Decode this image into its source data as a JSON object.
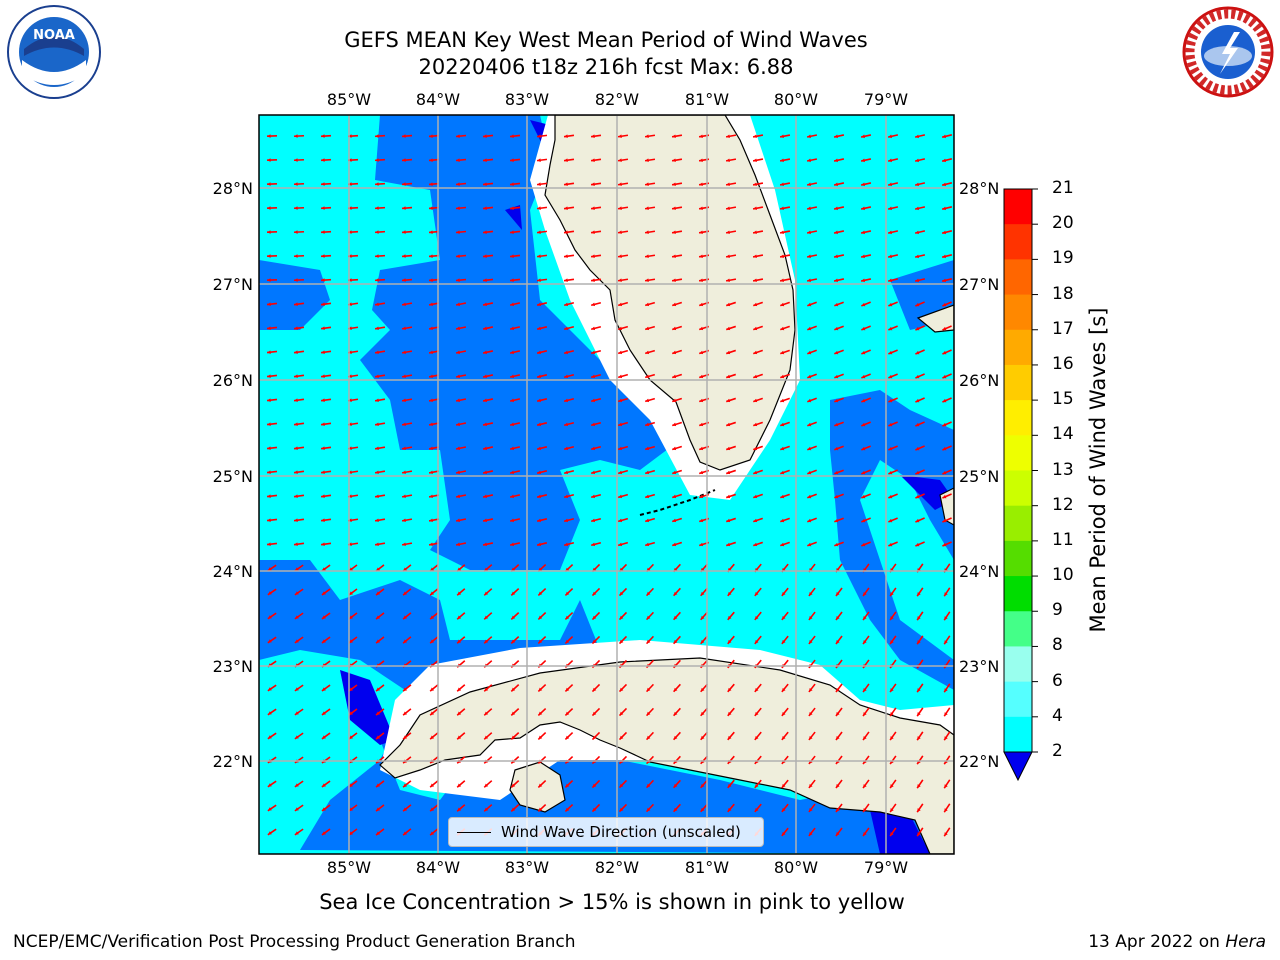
{
  "title_line1": "GEFS MEAN Key West Mean Period of Wind Waves",
  "title_line2": "20220406 t18z 216h fcst   Max: 6.88",
  "lon_labels": [
    "85°W",
    "84°W",
    "83°W",
    "82°W",
    "81°W",
    "80°W",
    "79°W"
  ],
  "lat_labels": [
    "28°N",
    "27°N",
    "26°N",
    "25°N",
    "24°N",
    "23°N",
    "22°N"
  ],
  "legend_label": "Wind Wave Direction (unscaled)",
  "colorbar": {
    "label": "Mean Period of Wind Waves [s]",
    "ticks": [
      "21",
      "20",
      "19",
      "18",
      "17",
      "16",
      "15",
      "14",
      "13",
      "12",
      "11",
      "10",
      "9",
      "8",
      "6",
      "4",
      "2"
    ],
    "colors": [
      "#ff0000",
      "#ff3300",
      "#ff6600",
      "#ff8800",
      "#ffaa00",
      "#ffcc00",
      "#ffee00",
      "#eeff00",
      "#ccff00",
      "#99ee00",
      "#55dd00",
      "#00dd00",
      "#44ff88",
      "#99ffee",
      "#55ffff",
      "#00ffff",
      "#0077ff"
    ],
    "under_color": "#0000ee"
  },
  "field_colors": {
    "band_2_4": "#0077ff",
    "band_4_6": "#00ffff",
    "below_2": "#0000ee",
    "land": "#efeedc",
    "arrow": "#ff0000"
  },
  "subtitle": "Sea Ice Concentration > 15% is shown in pink to yellow",
  "footer_left": "NCEP/EMC/Verification Post Processing Product Generation Branch",
  "footer_date": "13 Apr 2022 on",
  "footer_host": "Hera",
  "logos": {
    "left": "NOAA",
    "right": "NATIONAL WEATHER SERVICE"
  }
}
